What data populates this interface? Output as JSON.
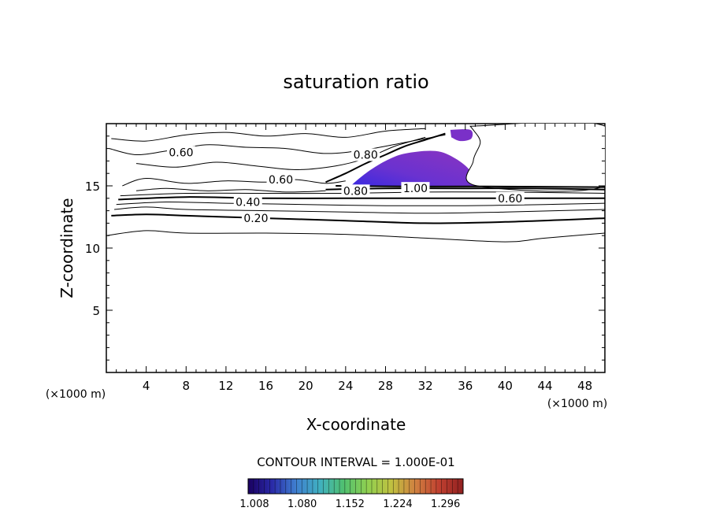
{
  "chart_data": {
    "type": "contour",
    "title": "saturation ratio",
    "xlabel": "X-coordinate",
    "ylabel": "Z-coordinate",
    "x_unit": "(×1000 m)",
    "y_unit": "(×1000 m)",
    "xlim": [
      0,
      50
    ],
    "ylim": [
      0,
      20
    ],
    "x_ticks": [
      4,
      8,
      12,
      16,
      20,
      24,
      28,
      32,
      36,
      40,
      44,
      48
    ],
    "y_ticks": [
      5,
      10,
      15
    ],
    "contour_interval_text": "CONTOUR INTERVAL = 1.000E-01",
    "contour_labels": [
      {
        "text": "0.60",
        "x": 7.5,
        "z": 17.7
      },
      {
        "text": "0.60",
        "x": 17.5,
        "z": 15.5
      },
      {
        "text": "0.40",
        "x": 14.2,
        "z": 13.7
      },
      {
        "text": "0.20",
        "x": 15.0,
        "z": 12.4
      },
      {
        "text": "0.80",
        "x": 25.0,
        "z": 14.6
      },
      {
        "text": "1.00",
        "x": 31.0,
        "z": 14.8
      },
      {
        "text": "0.60",
        "x": 40.5,
        "z": 14.0
      },
      {
        "text": "0.80",
        "x": 26.0,
        "z": 17.5
      }
    ],
    "contour_lines": [
      {
        "level": 0.2,
        "points": [
          [
            0,
            11.0
          ],
          [
            4,
            11.4
          ],
          [
            8,
            11.2
          ],
          [
            16,
            11.2
          ],
          [
            24,
            11.1
          ],
          [
            32,
            10.8
          ],
          [
            40,
            10.5
          ],
          [
            44,
            10.8
          ],
          [
            50,
            11.2
          ]
        ]
      },
      {
        "level": 0.2,
        "points": [
          [
            0.5,
            12.6
          ],
          [
            4,
            12.7
          ],
          [
            8,
            12.6
          ],
          [
            16,
            12.4
          ],
          [
            24,
            12.2
          ],
          [
            32,
            12.0
          ],
          [
            40,
            12.1
          ],
          [
            50,
            12.4
          ]
        ]
      },
      {
        "level": 0.4,
        "points": [
          [
            0.8,
            13.1
          ],
          [
            4,
            13.3
          ],
          [
            8,
            13.1
          ],
          [
            16,
            13.0
          ],
          [
            24,
            12.9
          ],
          [
            32,
            12.8
          ],
          [
            40,
            12.9
          ],
          [
            50,
            13.1
          ]
        ]
      },
      {
        "level": 0.5,
        "points": [
          [
            1.0,
            13.5
          ],
          [
            6,
            13.7
          ],
          [
            12,
            13.6
          ],
          [
            20,
            13.5
          ],
          [
            28,
            13.4
          ],
          [
            36,
            13.4
          ],
          [
            44,
            13.5
          ],
          [
            50,
            13.6
          ]
        ]
      },
      {
        "level": 0.6,
        "points": [
          [
            1.2,
            13.9
          ],
          [
            8,
            14.1
          ],
          [
            16,
            14.0
          ],
          [
            24,
            14.0
          ],
          [
            32,
            14.0
          ],
          [
            40,
            14.0
          ],
          [
            50,
            14.0
          ]
        ]
      },
      {
        "level": 0.7,
        "points": [
          [
            1.4,
            14.2
          ],
          [
            8,
            14.4
          ],
          [
            16,
            14.4
          ],
          [
            24,
            14.4
          ],
          [
            32,
            14.5
          ],
          [
            40,
            14.5
          ],
          [
            50,
            14.4
          ]
        ]
      },
      {
        "level": 0.8,
        "points": [
          [
            22,
            14.7
          ],
          [
            28,
            14.8
          ],
          [
            36,
            14.8
          ],
          [
            42,
            14.8
          ],
          [
            50,
            14.7
          ]
        ]
      },
      {
        "level": 0.9,
        "points": [
          [
            23,
            15.0
          ],
          [
            30,
            14.95
          ],
          [
            38,
            14.95
          ],
          [
            50,
            14.9
          ]
        ]
      },
      {
        "level": 0.6,
        "points": [
          [
            1.6,
            15.0
          ],
          [
            4,
            15.6
          ],
          [
            8,
            15.2
          ],
          [
            12,
            15.4
          ],
          [
            16,
            15.3
          ],
          [
            19,
            15.5
          ],
          [
            22,
            15.2
          ],
          [
            24,
            15.4
          ]
        ]
      },
      {
        "level": 0.6,
        "points": [
          [
            0.3,
            18.0
          ],
          [
            3,
            17.5
          ],
          [
            6,
            17.8
          ],
          [
            10,
            18.3
          ],
          [
            14,
            18.1
          ],
          [
            18,
            18.0
          ],
          [
            22,
            17.6
          ],
          [
            26,
            17.9
          ],
          [
            30,
            18.5
          ],
          [
            34,
            19.1
          ]
        ]
      },
      {
        "level": 0.5,
        "points": [
          [
            0.5,
            18.8
          ],
          [
            4,
            18.6
          ],
          [
            8,
            19.1
          ],
          [
            12,
            19.3
          ],
          [
            16,
            19.0
          ],
          [
            20,
            19.2
          ],
          [
            24,
            18.9
          ],
          [
            28,
            19.4
          ],
          [
            32,
            19.6
          ]
        ]
      },
      {
        "level": 0.7,
        "points": [
          [
            3,
            16.8
          ],
          [
            7,
            16.5
          ],
          [
            11,
            16.9
          ],
          [
            15,
            16.6
          ],
          [
            19,
            16.3
          ],
          [
            23,
            16.6
          ],
          [
            26,
            17.2
          ],
          [
            29,
            18.2
          ],
          [
            32,
            18.9
          ]
        ]
      },
      {
        "level": 0.8,
        "points": [
          [
            22,
            15.3
          ],
          [
            24,
            16.0
          ],
          [
            26,
            16.8
          ],
          [
            28,
            17.5
          ],
          [
            30,
            18.2
          ],
          [
            32,
            18.7
          ],
          [
            34,
            19.2
          ]
        ]
      },
      {
        "level": 0.4,
        "points": [
          [
            3,
            14.6
          ],
          [
            6,
            14.8
          ],
          [
            10,
            14.6
          ],
          [
            14,
            14.7
          ],
          [
            18,
            14.5
          ],
          [
            22,
            14.6
          ]
        ]
      }
    ],
    "supersaturated_region": {
      "min_value": 1.008,
      "max_value": 1.04,
      "outline": [
        [
          24.5,
          15.0
        ],
        [
          26,
          16.0
        ],
        [
          28,
          17.0
        ],
        [
          30,
          17.6
        ],
        [
          33,
          17.8
        ],
        [
          35,
          17.2
        ],
        [
          36.5,
          16.2
        ],
        [
          37.0,
          15.0
        ]
      ]
    },
    "supersaturated_patch_top": {
      "outline": [
        [
          34.5,
          19.5
        ],
        [
          36.5,
          19.5
        ],
        [
          36.6,
          18.8
        ],
        [
          35.5,
          18.6
        ],
        [
          34.6,
          18.9
        ]
      ]
    },
    "no_data_region": {
      "outline": [
        [
          36.5,
          19.8
        ],
        [
          50,
          19.8
        ],
        [
          50,
          15.0
        ],
        [
          37.2,
          15.0
        ],
        [
          36.8,
          17.0
        ],
        [
          37.5,
          18.5
        ],
        [
          36.8,
          19.5
        ]
      ]
    },
    "colorbar": {
      "min": 1.008,
      "max": 1.332,
      "tick_labels": [
        "1.008",
        "1.080",
        "1.152",
        "1.224",
        "1.296"
      ],
      "colors": [
        "#1a0060",
        "#2a2aa8",
        "#3f7fd0",
        "#40b0c0",
        "#50c070",
        "#90d050",
        "#c0c040",
        "#d08040",
        "#c04030",
        "#902020"
      ]
    },
    "line_color": "#000000",
    "fill_color": "#7a30c8"
  }
}
